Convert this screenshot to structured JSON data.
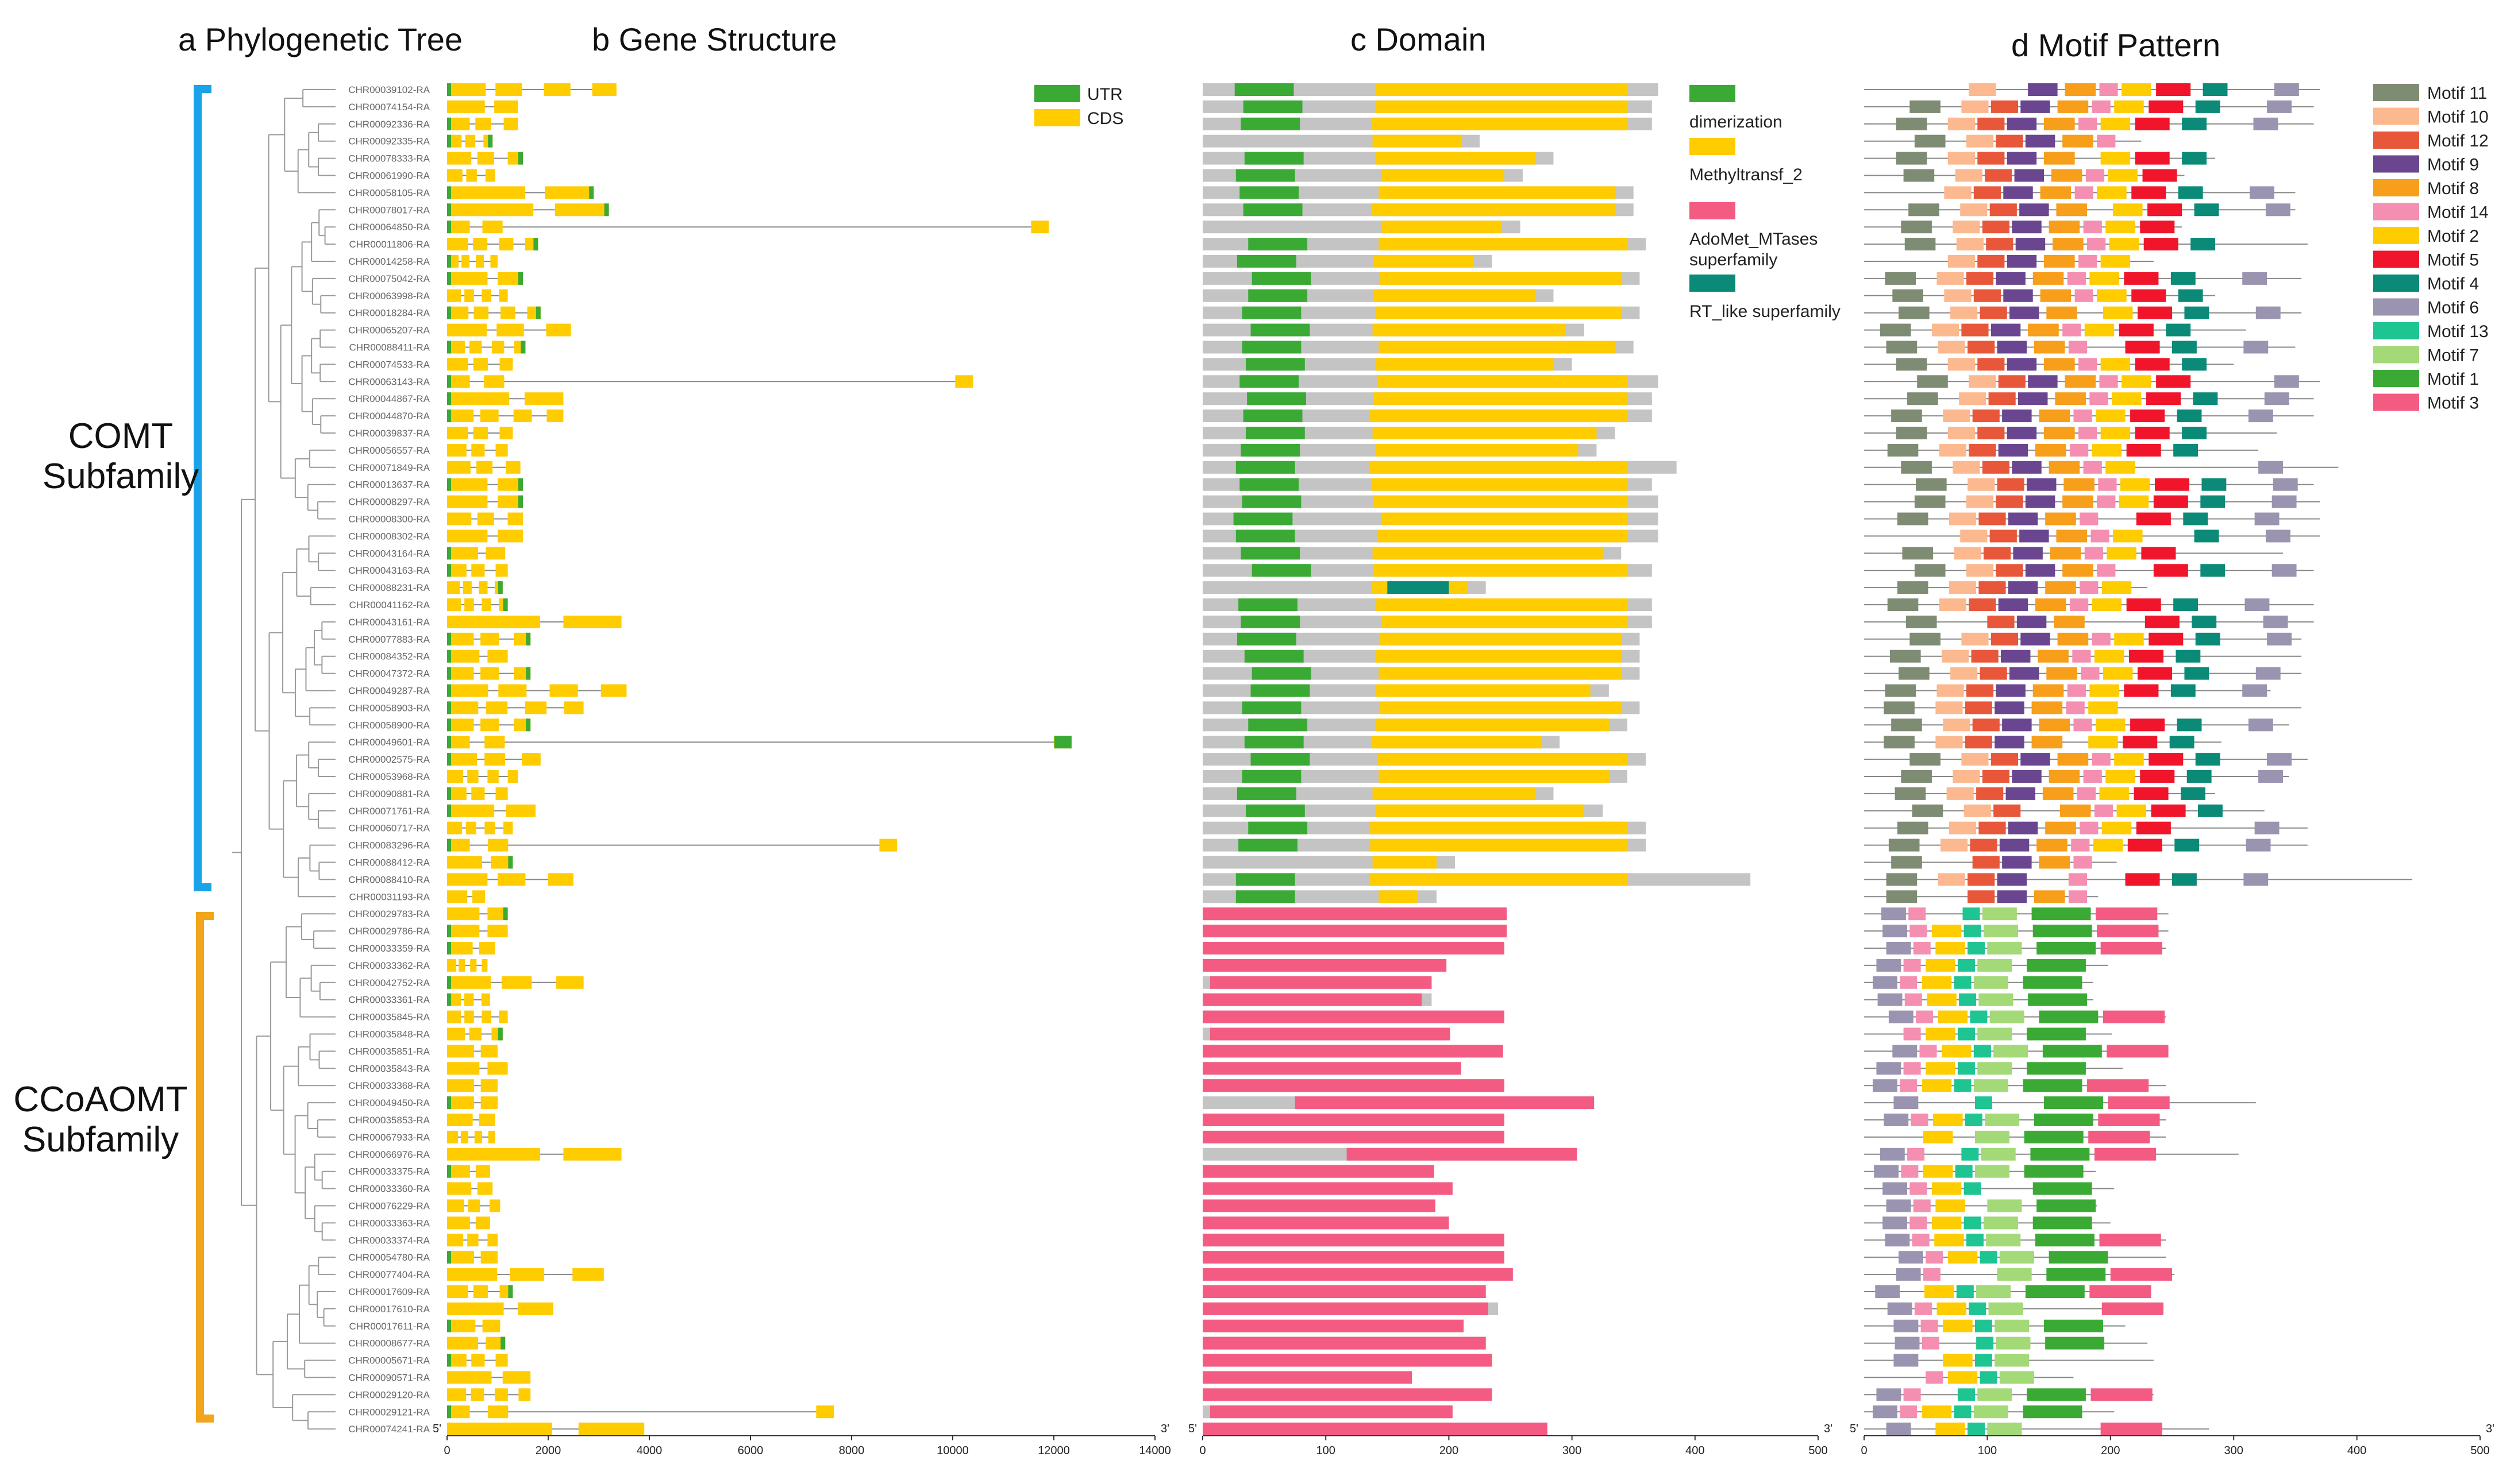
{
  "panels": {
    "a": "a Phylogenetic Tree",
    "b": "b Gene Structure",
    "c": "c Domain",
    "d": "d Motif Pattern"
  },
  "subfamilies": {
    "comt": {
      "line1": "COMT",
      "line2": "Subfamily",
      "color": "#1aa3e8"
    },
    "ccoaomt": {
      "line1": "CCoAOMT",
      "line2": "Subfamily",
      "color": "#f0a51a"
    }
  },
  "genes": [
    "CHR00039102-RA",
    "CHR00074154-RA",
    "CHR00092336-RA",
    "CHR00092335-RA",
    "CHR00078333-RA",
    "CHR00061990-RA",
    "CHR00058105-RA",
    "CHR00078017-RA",
    "CHR00064850-RA",
    "CHR00011806-RA",
    "CHR00014258-RA",
    "CHR00075042-RA",
    "CHR00063998-RA",
    "CHR00018284-RA",
    "CHR00065207-RA",
    "CHR00088411-RA",
    "CHR00074533-RA",
    "CHR00063143-RA",
    "CHR00044867-RA",
    "CHR00044870-RA",
    "CHR00039837-RA",
    "CHR00056557-RA",
    "CHR00071849-RA",
    "CHR00013637-RA",
    "CHR00008297-RA",
    "CHR00008300-RA",
    "CHR00008302-RA",
    "CHR00043164-RA",
    "CHR00043163-RA",
    "CHR00088231-RA",
    "CHR00041162-RA",
    "CHR00043161-RA",
    "CHR00077883-RA",
    "CHR00084352-RA",
    "CHR00047372-RA",
    "CHR00049287-RA",
    "CHR00058903-RA",
    "CHR00058900-RA",
    "CHR00049601-RA",
    "CHR00002575-RA",
    "CHR00053968-RA",
    "CHR00090881-RA",
    "CHR00071761-RA",
    "CHR00060717-RA",
    "CHR00083296-RA",
    "CHR00088412-RA",
    "CHR00088410-RA",
    "CHR00031193-RA",
    "CHR00029783-RA",
    "CHR00029786-RA",
    "CHR00033359-RA",
    "CHR00033362-RA",
    "CHR00042752-RA",
    "CHR00033361-RA",
    "CHR00035845-RA",
    "CHR00035848-RA",
    "CHR00035851-RA",
    "CHR00035843-RA",
    "CHR00033368-RA",
    "CHR00049450-RA",
    "CHR00035853-RA",
    "CHR00067933-RA",
    "CHR00066976-RA",
    "CHR00033375-RA",
    "CHR00033360-RA",
    "CHR00076229-RA",
    "CHR00033363-RA",
    "CHR00033374-RA",
    "CHR00054780-RA",
    "CHR00077404-RA",
    "CHR00017609-RA",
    "CHR00017610-RA",
    "CHR00017611-RA",
    "CHR00008677-RA",
    "CHR00005671-RA",
    "CHR00090571-RA",
    "CHR00029120-RA",
    "CHR00029121-RA",
    "CHR00074241-RA"
  ],
  "gene_structure_axis": {
    "ticks": [
      "0",
      "2000",
      "4000",
      "6000",
      "8000",
      "10000",
      "12000",
      "14000"
    ],
    "max": 14000,
    "start": "5'",
    "end": "3'"
  },
  "domain_axis": {
    "ticks": [
      "0",
      "100",
      "200",
      "300",
      "400",
      "500"
    ],
    "max": 500,
    "start": "5'",
    "end": "3'"
  },
  "motif_axis": {
    "ticks": [
      "0",
      "100",
      "200",
      "300",
      "400",
      "500"
    ],
    "max": 500,
    "start": "5'",
    "end": "3'"
  },
  "gene_legend": [
    {
      "label": "UTR",
      "color": "#3aaa35"
    },
    {
      "label": "CDS",
      "color": "#ffcc00"
    }
  ],
  "domain_legend": [
    {
      "label": "dimerization",
      "color": "#3aaa35"
    },
    {
      "label": "Methyltransf_2",
      "color": "#ffcc00"
    },
    {
      "label": "AdoMet_MTases",
      "label2": "superfamily",
      "color": "#f45b82"
    },
    {
      "label": "RT_like superfamily",
      "color": "#0b8a78"
    }
  ],
  "motif_legend": [
    {
      "label": "Motif 11",
      "color": "#7f8c74"
    },
    {
      "label": "Motif 10",
      "color": "#fcb98f"
    },
    {
      "label": "Motif 12",
      "color": "#e8573a"
    },
    {
      "label": "Motif 9",
      "color": "#6a4690"
    },
    {
      "label": "Motif 8",
      "color": "#f79e1b"
    },
    {
      "label": "Motif 14",
      "color": "#f48fb1"
    },
    {
      "label": "Motif 2",
      "color": "#ffcc00"
    },
    {
      "label": "Motif 5",
      "color": "#f0152a"
    },
    {
      "label": "Motif 4",
      "color": "#0b8a78"
    },
    {
      "label": "Motif 6",
      "color": "#9a94b0"
    },
    {
      "label": "Motif 13",
      "color": "#1fc493"
    },
    {
      "label": "Motif 7",
      "color": "#a3d977"
    },
    {
      "label": "Motif 1",
      "color": "#3aaa35"
    },
    {
      "label": "Motif 3",
      "color": "#f45b82"
    }
  ]
}
